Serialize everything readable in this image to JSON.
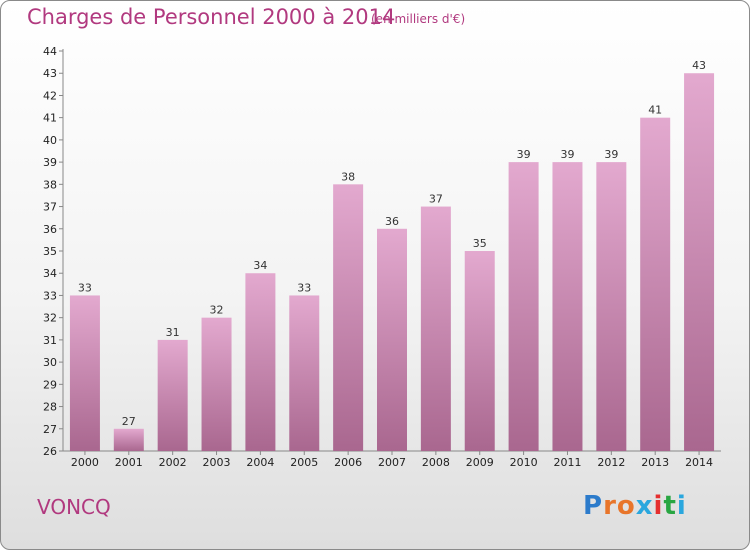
{
  "header": {
    "title": "Charges de Personnel 2000 à 2014",
    "unit": "(en milliers d'€)"
  },
  "footer": {
    "commune": "VONCQ",
    "logo_text": "Proxiti"
  },
  "colors": {
    "accent": "#b1397f",
    "bar_top": "#e3a9cf",
    "bar_bottom": "#a9678f",
    "logo_letters": [
      "#2c7bcb",
      "#e8752a",
      "#e8752a",
      "#2aa7de",
      "#e52f2f",
      "#29a642",
      "#2aa7de"
    ]
  },
  "chart_data": {
    "type": "bar",
    "title": "Charges de Personnel 2000 à 2014",
    "subtitle": "(en milliers d'€)",
    "categories": [
      "2000",
      "2001",
      "2002",
      "2003",
      "2004",
      "2005",
      "2006",
      "2007",
      "2008",
      "2009",
      "2010",
      "2011",
      "2012",
      "2013",
      "2014"
    ],
    "values": [
      33,
      27,
      31,
      32,
      34,
      33,
      38,
      36,
      37,
      35,
      39,
      39,
      39,
      41,
      43
    ],
    "ylim": [
      26,
      44
    ],
    "yticks": [
      26,
      27,
      28,
      29,
      30,
      31,
      32,
      33,
      34,
      35,
      36,
      37,
      38,
      39,
      40,
      41,
      42,
      43,
      44
    ],
    "grid": false,
    "data_labels": true
  }
}
